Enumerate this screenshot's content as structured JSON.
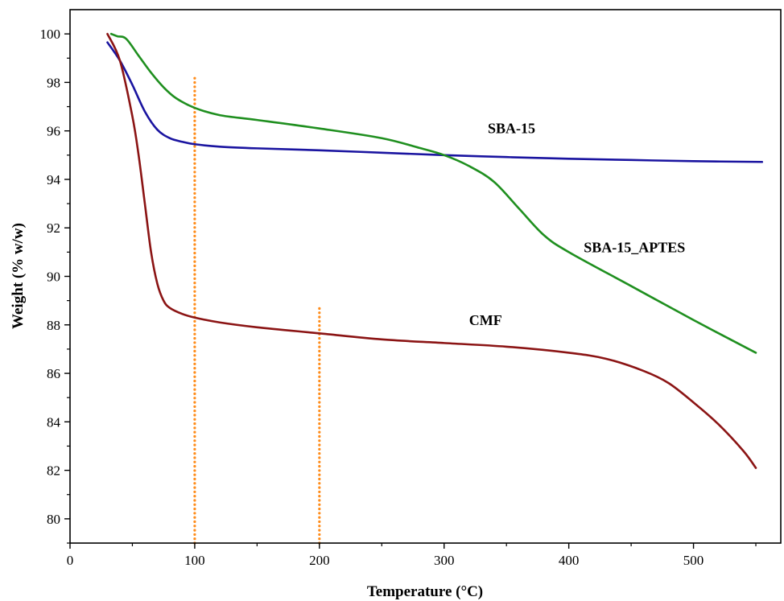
{
  "chart_data": {
    "type": "line",
    "title": "",
    "xlabel": "Temperature (°C)",
    "ylabel": "Weight (% w/w)",
    "xlim": [
      0,
      570
    ],
    "ylim": [
      79,
      101
    ],
    "x_ticks": [
      0,
      100,
      200,
      300,
      400,
      500
    ],
    "y_ticks": [
      80,
      82,
      84,
      86,
      88,
      90,
      92,
      94,
      96,
      98,
      100
    ],
    "grid": false,
    "legend": "none (series labelled inline)",
    "series": [
      {
        "name": "SBA-15",
        "color": "#1a14a0",
        "x": [
          30,
          40,
          50,
          60,
          70,
          80,
          90,
          100,
          120,
          150,
          200,
          250,
          300,
          350,
          400,
          450,
          500,
          555
        ],
        "y": [
          99.65,
          98.9,
          97.9,
          96.8,
          96.05,
          95.7,
          95.55,
          95.45,
          95.35,
          95.28,
          95.2,
          95.1,
          95.0,
          94.92,
          94.85,
          94.8,
          94.75,
          94.72
        ]
      },
      {
        "name": "SBA-15_APTES",
        "color": "#1f8f1f",
        "x": [
          33,
          38,
          45,
          55,
          65,
          75,
          85,
          100,
          120,
          150,
          200,
          250,
          280,
          300,
          320,
          340,
          360,
          380,
          400,
          450,
          500,
          550
        ],
        "y": [
          100.0,
          99.9,
          99.8,
          99.1,
          98.4,
          97.8,
          97.35,
          96.95,
          96.65,
          96.45,
          96.1,
          95.7,
          95.3,
          95.0,
          94.55,
          93.9,
          92.8,
          91.7,
          91.0,
          89.6,
          88.2,
          86.85
        ]
      },
      {
        "name": "CMF",
        "color": "#8b1414",
        "x": [
          30,
          40,
          50,
          55,
          60,
          65,
          70,
          75,
          80,
          90,
          100,
          120,
          150,
          200,
          250,
          300,
          350,
          400,
          430,
          460,
          480,
          500,
          520,
          540,
          550
        ],
        "y": [
          100.0,
          98.9,
          96.6,
          95.0,
          93.0,
          91.0,
          89.7,
          89.0,
          88.7,
          88.45,
          88.3,
          88.1,
          87.9,
          87.65,
          87.4,
          87.25,
          87.1,
          86.85,
          86.6,
          86.1,
          85.6,
          84.8,
          83.9,
          82.8,
          82.1
        ]
      }
    ],
    "annotations": [
      {
        "type": "vertical-dotted-line",
        "x": 100,
        "y_from": 79,
        "y_to": 98.3,
        "color": "#ff8c1a"
      },
      {
        "type": "vertical-dotted-line",
        "x": 200,
        "y_from": 79,
        "y_to": 88.8,
        "color": "#ff8c1a"
      }
    ],
    "series_labels": [
      {
        "text": "SBA-15",
        "x": 335,
        "y": 95.9
      },
      {
        "text": "SBA-15_APTES",
        "x": 412,
        "y": 91.0
      },
      {
        "text": "CMF",
        "x": 320,
        "y": 88.0
      }
    ]
  }
}
